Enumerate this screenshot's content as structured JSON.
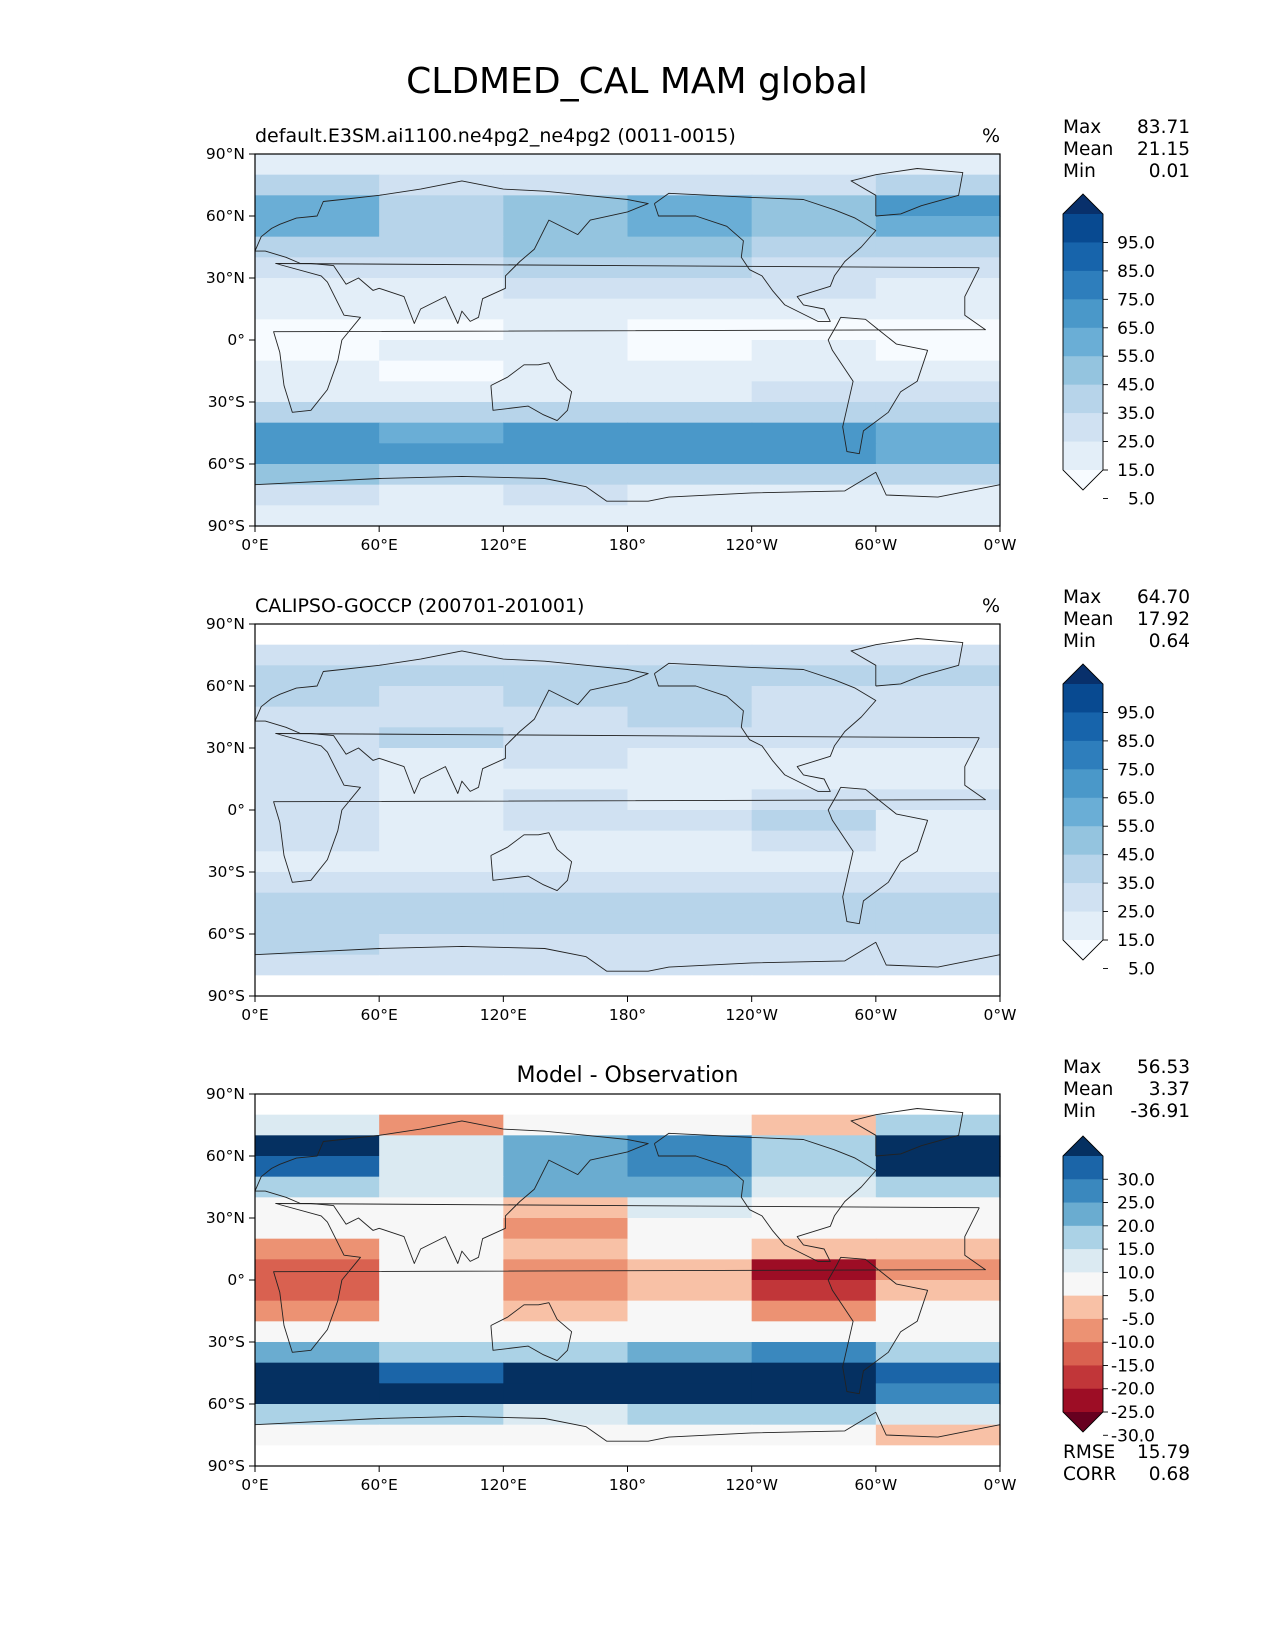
{
  "figure": {
    "title": "CLDMED_CAL MAM global"
  },
  "axis_ticks": {
    "lat": [
      "90°N",
      "60°N",
      "30°N",
      "0°",
      "30°S",
      "60°S",
      "90°S"
    ],
    "lon": [
      "0°E",
      "60°E",
      "120°E",
      "180°",
      "120°W",
      "60°W",
      "0°W"
    ]
  },
  "colors": {
    "blues": [
      "#f7fbff",
      "#e3eef8",
      "#d0e1f2",
      "#b7d4ea",
      "#94c4df",
      "#6aaed6",
      "#4a98c9",
      "#2e7ebc",
      "#1764ab",
      "#084a91",
      "#08306b"
    ],
    "diverging": [
      "#67001f",
      "#9d0d25",
      "#c13639",
      "#d96150",
      "#ec9273",
      "#f8c1a6",
      "#f7f7f7",
      "#dbeaf2",
      "#abd2e6",
      "#6aacd0",
      "#3a88be",
      "#1b65a8",
      "#053061"
    ]
  },
  "panels": [
    {
      "id": "model",
      "left_title": "default.E3SM.ai1100.ne4pg2_ne4pg2 (0011-0015)",
      "right_title": "%",
      "center_title": "",
      "stats": [
        {
          "label": "Max",
          "value": "83.71"
        },
        {
          "label": "Mean",
          "value": "21.15"
        },
        {
          "label": "Min",
          "value": "0.01"
        }
      ],
      "colorbar_ticks": [
        "95.0",
        "85.0",
        "75.0",
        "65.0",
        "55.0",
        "45.0",
        "35.0",
        "25.0",
        "15.0",
        "5.0"
      ],
      "bottom_stats": []
    },
    {
      "id": "obs",
      "left_title": "CALIPSO-GOCCP (200701-201001)",
      "right_title": "%",
      "center_title": "",
      "stats": [
        {
          "label": "Max",
          "value": "64.70"
        },
        {
          "label": "Mean",
          "value": "17.92"
        },
        {
          "label": "Min",
          "value": "0.64"
        }
      ],
      "colorbar_ticks": [
        "95.0",
        "85.0",
        "75.0",
        "65.0",
        "55.0",
        "45.0",
        "35.0",
        "25.0",
        "15.0",
        "5.0"
      ],
      "bottom_stats": []
    },
    {
      "id": "diff",
      "left_title": "",
      "right_title": "",
      "center_title": "Model - Observation",
      "stats": [
        {
          "label": "Max",
          "value": "56.53"
        },
        {
          "label": "Mean",
          "value": "3.37"
        },
        {
          "label": "Min",
          "value": "-36.91"
        }
      ],
      "colorbar_ticks": [
        "30.0",
        "25.0",
        "20.0",
        "15.0",
        "10.0",
        "5.0",
        "-5.0",
        "-10.0",
        "-15.0",
        "-20.0",
        "-25.0",
        "-30.0"
      ],
      "bottom_stats": [
        {
          "label": "RMSE",
          "value": "15.79"
        },
        {
          "label": "CORR",
          "value": "0.68"
        }
      ]
    }
  ],
  "chart_data": [
    {
      "type": "heatmap",
      "title": "default.E3SM.ai1100.ne4pg2_ne4pg2 (0011-0015)",
      "units": "%",
      "xlim": [
        0,
        360
      ],
      "ylim": [
        -90,
        90
      ],
      "levels": [
        5,
        15,
        25,
        35,
        45,
        55,
        65,
        75,
        85,
        95
      ],
      "lat": [
        85,
        75,
        65,
        55,
        45,
        35,
        25,
        15,
        5,
        -5,
        -15,
        -25,
        -35,
        -45,
        -55,
        -65,
        -75,
        -85
      ],
      "lon_sectors": [
        "0-60E",
        "60-120E",
        "120-180E",
        "180-120W",
        "120-60W",
        "60W-0"
      ],
      "values": [
        [
          12,
          8,
          12,
          10,
          10,
          12
        ],
        [
          25,
          18,
          22,
          20,
          22,
          30
        ],
        [
          50,
          28,
          40,
          48,
          38,
          55
        ],
        [
          45,
          30,
          40,
          50,
          40,
          50
        ],
        [
          30,
          25,
          35,
          40,
          28,
          32
        ],
        [
          18,
          18,
          25,
          25,
          20,
          18
        ],
        [
          10,
          12,
          15,
          15,
          15,
          12
        ],
        [
          5,
          5,
          5,
          5,
          5,
          5
        ],
        [
          3,
          4,
          5,
          3,
          3,
          3
        ],
        [
          3,
          5,
          5,
          4,
          5,
          3
        ],
        [
          5,
          4,
          5,
          6,
          8,
          6
        ],
        [
          12,
          10,
          10,
          14,
          18,
          16
        ],
        [
          30,
          25,
          25,
          30,
          30,
          25
        ],
        [
          55,
          50,
          55,
          55,
          58,
          50
        ],
        [
          60,
          55,
          60,
          58,
          60,
          45
        ],
        [
          35,
          30,
          28,
          30,
          30,
          30
        ],
        [
          15,
          12,
          15,
          12,
          10,
          12
        ],
        [
          8,
          5,
          6,
          8,
          5,
          8
        ]
      ]
    },
    {
      "type": "heatmap",
      "title": "CALIPSO-GOCCP (200701-201001)",
      "units": "%",
      "xlim": [
        0,
        360
      ],
      "ylim": [
        -90,
        90
      ],
      "levels": [
        5,
        15,
        25,
        35,
        45,
        55,
        65,
        75,
        85,
        95
      ],
      "lat": [
        85,
        75,
        65,
        55,
        45,
        35,
        25,
        15,
        5,
        -5,
        -15,
        -25,
        -35,
        -45,
        -55,
        -65,
        -75,
        -85
      ],
      "lon_sectors": [
        "0-60E",
        "60-120E",
        "120-180E",
        "180-120W",
        "120-60W",
        "60W-0"
      ],
      "values": [
        [
          null,
          null,
          null,
          null,
          null,
          null
        ],
        [
          22,
          20,
          22,
          22,
          22,
          24
        ],
        [
          28,
          26,
          26,
          30,
          28,
          28
        ],
        [
          25,
          24,
          25,
          30,
          24,
          24
        ],
        [
          22,
          22,
          20,
          25,
          20,
          20
        ],
        [
          22,
          28,
          18,
          16,
          16,
          18
        ],
        [
          18,
          14,
          15,
          10,
          12,
          14
        ],
        [
          16,
          10,
          12,
          10,
          12,
          14
        ],
        [
          22,
          12,
          18,
          14,
          22,
          16
        ],
        [
          24,
          12,
          16,
          15,
          28,
          14
        ],
        [
          20,
          10,
          14,
          10,
          22,
          12
        ],
        [
          14,
          10,
          12,
          10,
          14,
          12
        ],
        [
          22,
          20,
          20,
          20,
          20,
          20
        ],
        [
          30,
          28,
          30,
          30,
          28,
          28
        ],
        [
          30,
          26,
          30,
          28,
          26,
          28
        ],
        [
          25,
          22,
          24,
          24,
          22,
          24
        ],
        [
          22,
          20,
          22,
          20,
          20,
          22
        ],
        [
          null,
          null,
          null,
          null,
          null,
          null
        ]
      ]
    },
    {
      "type": "heatmap",
      "title": "Model - Observation",
      "xlim": [
        0,
        360
      ],
      "ylim": [
        -90,
        90
      ],
      "levels": [
        -30,
        -25,
        -20,
        -15,
        -10,
        -5,
        5,
        10,
        15,
        20,
        25,
        30
      ],
      "lat": [
        85,
        75,
        65,
        55,
        45,
        35,
        25,
        15,
        5,
        -5,
        -15,
        -25,
        -35,
        -45,
        -55,
        -65,
        -75,
        -85
      ],
      "lon_sectors": [
        "0-60E",
        "60-120E",
        "120-180E",
        "180-120W",
        "120-60W",
        "60W-0"
      ],
      "values": [
        [
          null,
          null,
          null,
          null,
          null,
          null
        ],
        [
          5,
          -15,
          -3,
          0,
          -10,
          10
        ],
        [
          35,
          5,
          15,
          20,
          10,
          32
        ],
        [
          25,
          6,
          15,
          22,
          14,
          30
        ],
        [
          10,
          5,
          18,
          15,
          8,
          12
        ],
        [
          -2,
          -3,
          -10,
          6,
          2,
          -2
        ],
        [
          -5,
          -2,
          -12,
          -3,
          2,
          -3
        ],
        [
          -15,
          -2,
          -10,
          -5,
          -10,
          -10
        ],
        [
          -20,
          -4,
          -12,
          -8,
          -30,
          -12
        ],
        [
          -20,
          -2,
          -15,
          -8,
          -25,
          -8
        ],
        [
          -12,
          -3,
          -8,
          -3,
          -15,
          -5
        ],
        [
          -3,
          0,
          -3,
          3,
          2,
          2
        ],
        [
          15,
          10,
          10,
          15,
          20,
          10
        ],
        [
          30,
          28,
          32,
          32,
          35,
          25
        ],
        [
          40,
          32,
          35,
          32,
          35,
          22
        ],
        [
          12,
          10,
          8,
          10,
          10,
          8
        ],
        [
          -3,
          -5,
          -3,
          -5,
          -5,
          -10
        ],
        [
          null,
          null,
          null,
          null,
          null,
          null
        ]
      ]
    }
  ]
}
